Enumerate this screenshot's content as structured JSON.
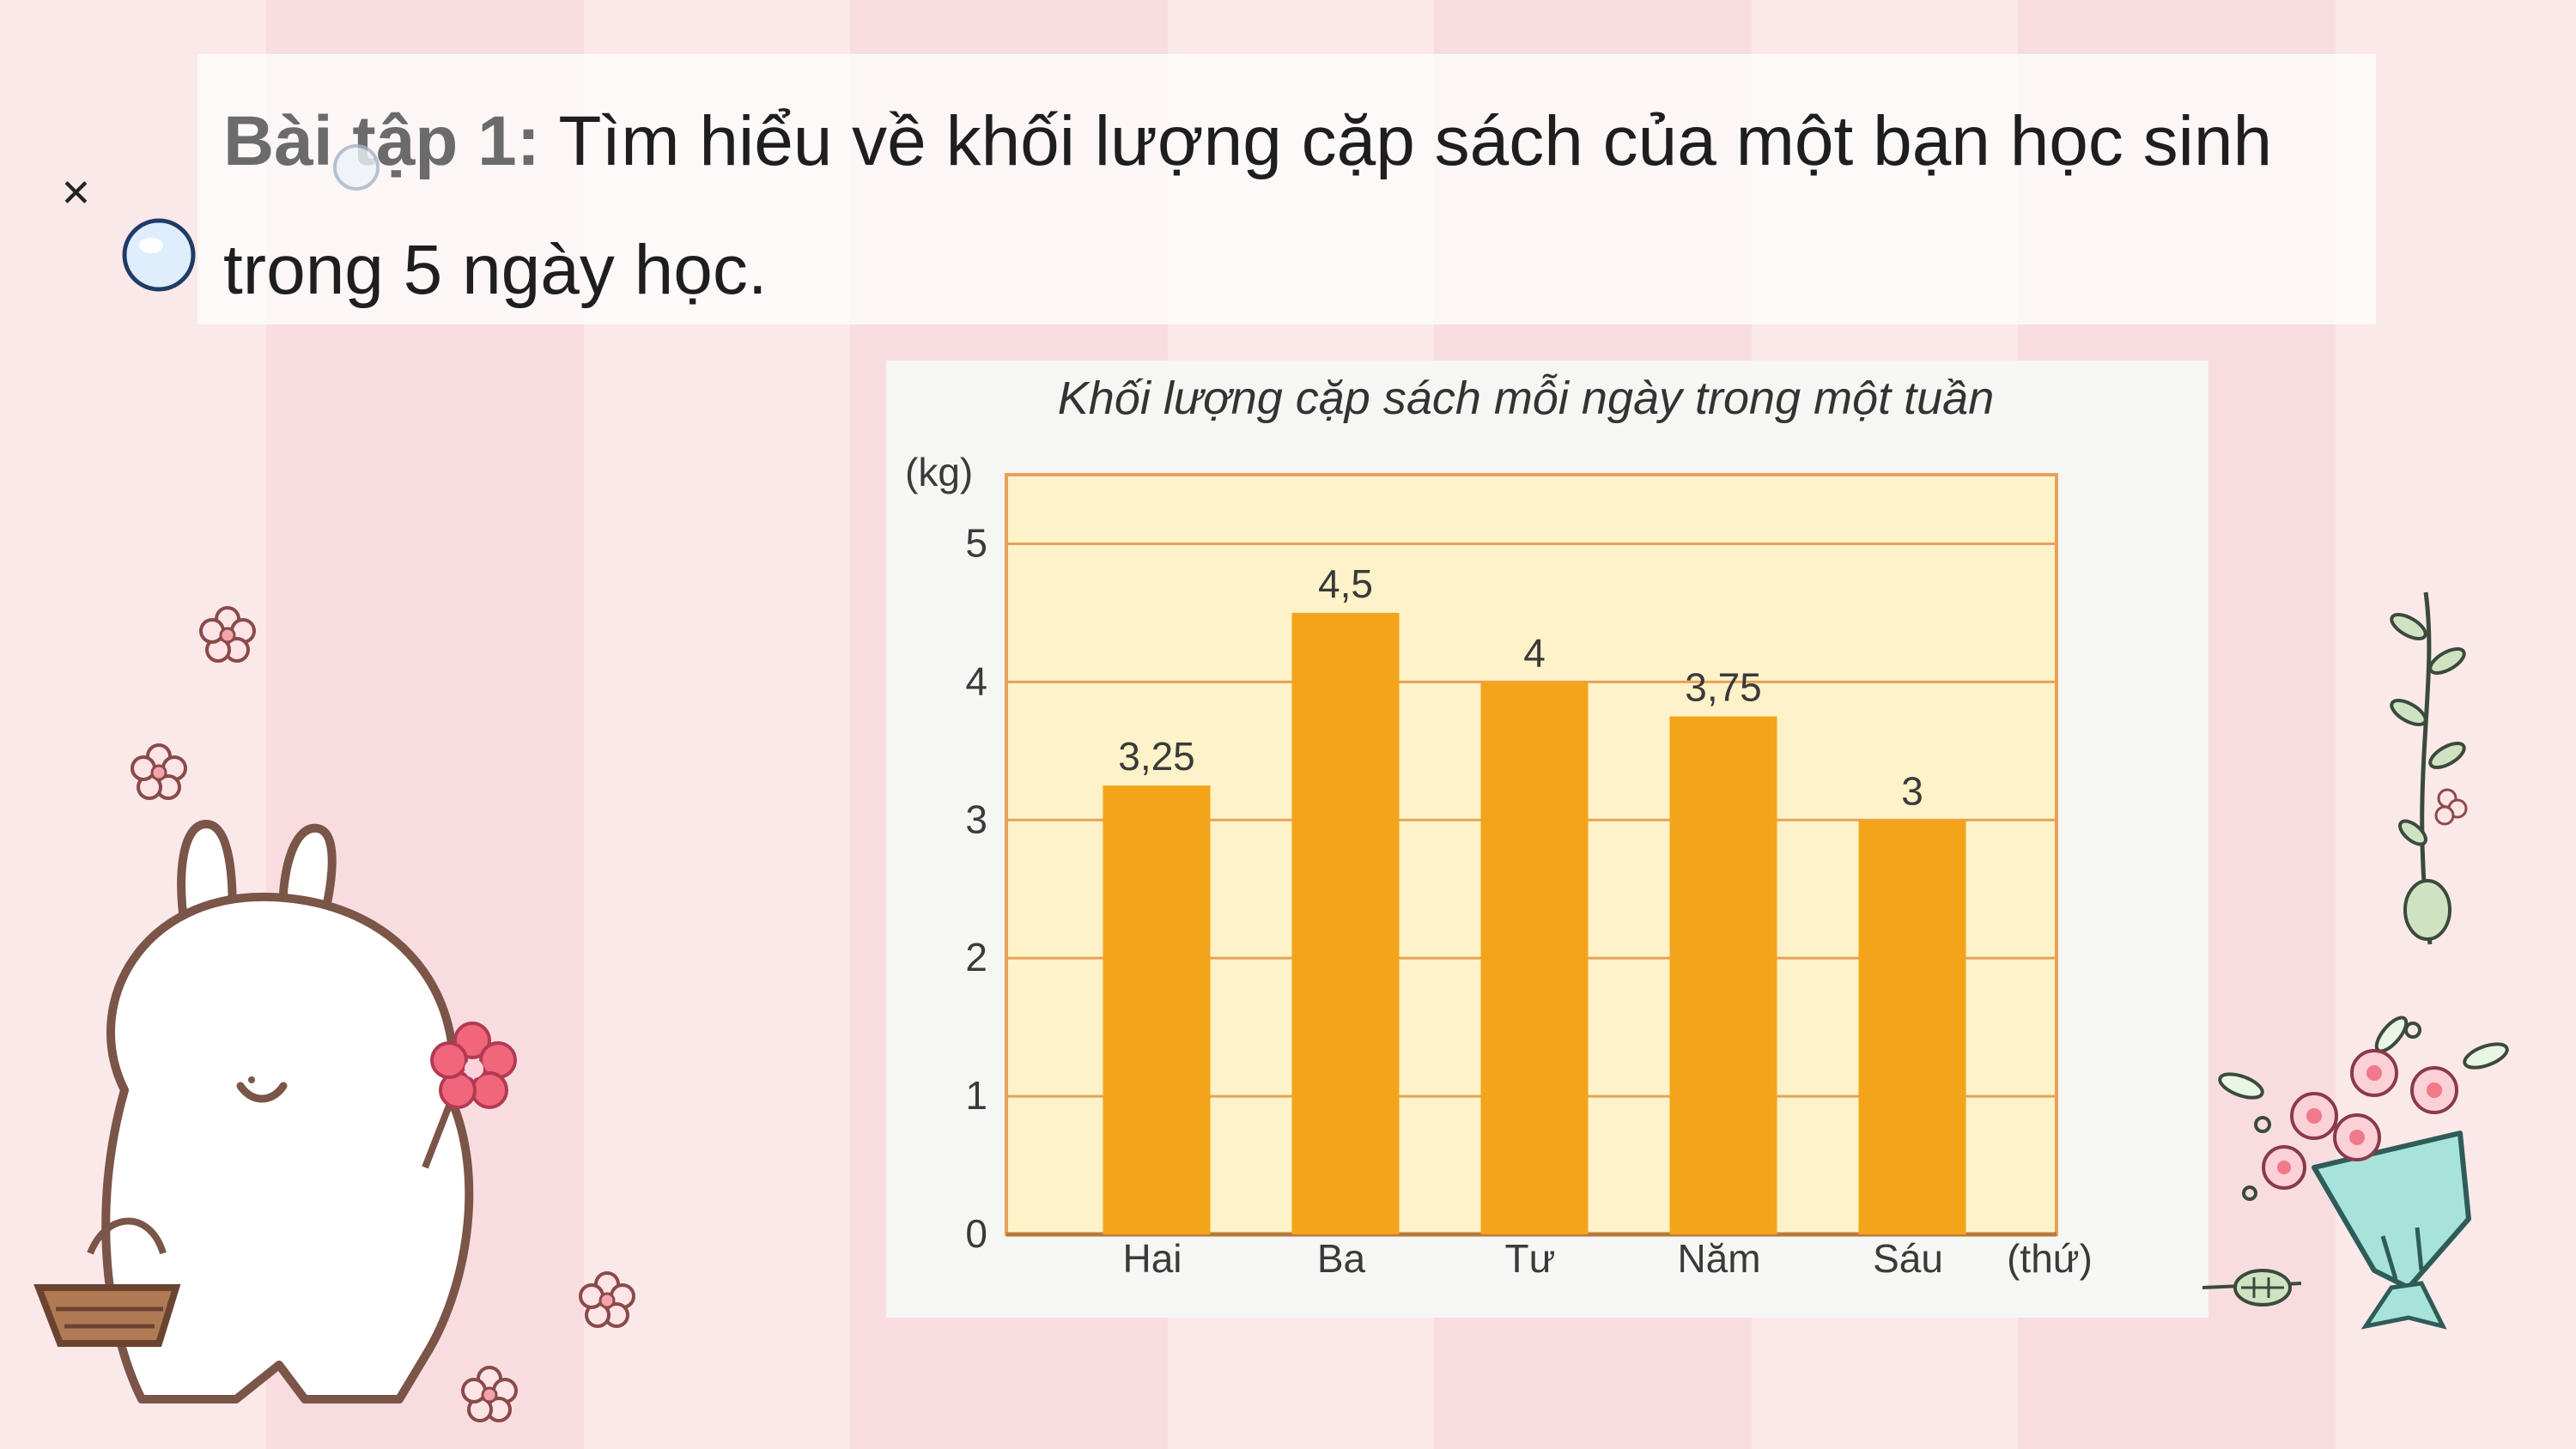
{
  "exercise": {
    "label": "Bài tập 1:",
    "line1": "Tìm hiểu về khối lượng cặp sách của một bạn học sinh",
    "line2": "trong 5 ngày học."
  },
  "chart_data": {
    "type": "bar",
    "title": "Khối lượng cặp sách mỗi ngày trong một tuần",
    "ylabel": "(kg)",
    "xlabel": "(thứ)",
    "categories": [
      "Hai",
      "Ba",
      "Tư",
      "Năm",
      "Sáu"
    ],
    "values": [
      3.25,
      4.5,
      4,
      3.75,
      3
    ],
    "data_labels": [
      "3,25",
      "4,5",
      "4",
      "3,75",
      "3"
    ],
    "yticks": [
      0,
      1,
      2,
      3,
      4,
      5
    ],
    "ylim": [
      0,
      5.5
    ],
    "grid": true,
    "colors": {
      "bar": "#f4a41a",
      "plot_bg": "#fdf2c8",
      "grid": "#e8a15a",
      "text": "#3a3a3a"
    }
  },
  "decorations": {
    "close_icon": "✕",
    "icons": [
      "bubble-icon",
      "flower-icon",
      "bunny-illustration",
      "flower-bouquet-icon",
      "leaf-branch-icon"
    ]
  }
}
